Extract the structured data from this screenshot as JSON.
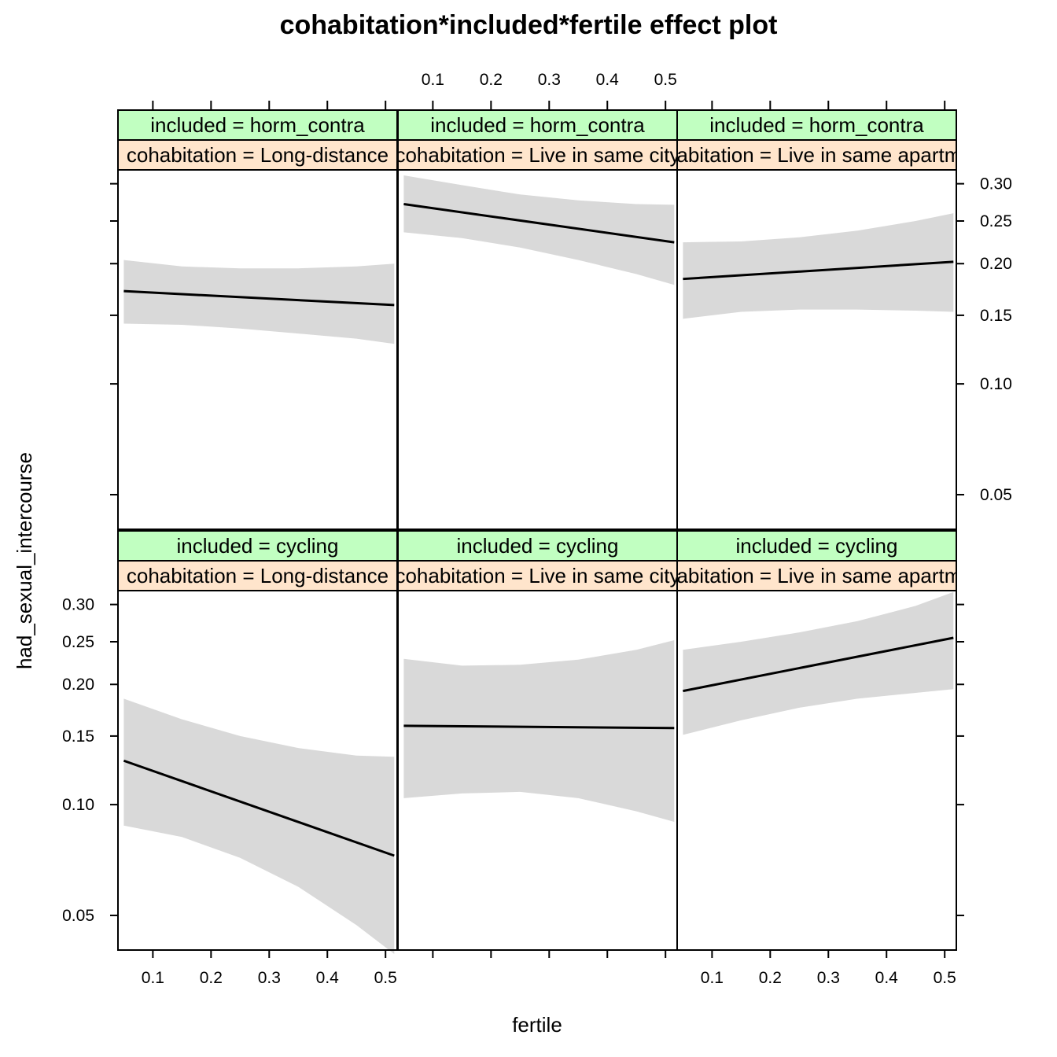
{
  "chart_data": {
    "type": "line",
    "title": "cohabitation*included*fertile effect plot",
    "xlabel": "fertile",
    "ylabel": "had_sexual_intercourse",
    "xlim": [
      0.04,
      0.52
    ],
    "ylim": [
      0.04,
      0.32
    ],
    "y_scale": "logit",
    "x_ticks": [
      0.1,
      0.2,
      0.3,
      0.4,
      0.5
    ],
    "x_tick_labels": [
      "0.1",
      "0.2",
      "0.3",
      "0.4",
      "0.5"
    ],
    "y_ticks": [
      0.05,
      0.1,
      0.15,
      0.2,
      0.25,
      0.3
    ],
    "y_tick_labels": [
      "0.05",
      "0.10",
      "0.15",
      "0.20",
      "0.25",
      "0.30"
    ],
    "grid": false,
    "band_color": "#d9d9d9",
    "line_color": "#000000",
    "strip_colors": {
      "included": "#c1ffc1",
      "cohabitation": "#ffe5cc"
    },
    "panels": [
      {
        "id": "horm-long",
        "row": 0,
        "col": 0,
        "included_label": "included = horm_contra",
        "cohabitation_label": "cohabitation = Long-distance",
        "fit": [
          [
            0.05,
            0.172
          ],
          [
            0.515,
            0.159
          ]
        ],
        "band": [
          [
            0.05,
            0.143,
            0.204
          ],
          [
            0.15,
            0.142,
            0.197
          ],
          [
            0.25,
            0.139,
            0.195
          ],
          [
            0.35,
            0.135,
            0.195
          ],
          [
            0.45,
            0.131,
            0.197
          ],
          [
            0.515,
            0.127,
            0.2
          ]
        ]
      },
      {
        "id": "horm-nonres",
        "row": 0,
        "col": 1,
        "included_label": "included = horm_contra",
        "cohabitation_label": "cohabitation = Live in same city",
        "fit": [
          [
            0.05,
            0.272
          ],
          [
            0.515,
            0.224
          ]
        ],
        "band": [
          [
            0.05,
            0.236,
            0.312
          ],
          [
            0.15,
            0.229,
            0.298
          ],
          [
            0.25,
            0.218,
            0.285
          ],
          [
            0.35,
            0.204,
            0.277
          ],
          [
            0.45,
            0.189,
            0.272
          ],
          [
            0.515,
            0.178,
            0.271
          ]
        ]
      },
      {
        "id": "horm-same",
        "row": 0,
        "col": 2,
        "included_label": "included = horm_contra",
        "cohabitation_label": "cohabitation = Live in same apartment",
        "fit": [
          [
            0.05,
            0.184
          ],
          [
            0.515,
            0.202
          ]
        ],
        "band": [
          [
            0.05,
            0.147,
            0.224
          ],
          [
            0.15,
            0.153,
            0.225
          ],
          [
            0.25,
            0.155,
            0.23
          ],
          [
            0.35,
            0.155,
            0.238
          ],
          [
            0.45,
            0.154,
            0.25
          ],
          [
            0.515,
            0.153,
            0.26
          ]
        ]
      },
      {
        "id": "cyc-long",
        "row": 1,
        "col": 0,
        "included_label": "included = cycling",
        "cohabitation_label": "cohabitation = Long-distance",
        "fit": [
          [
            0.05,
            0.13
          ],
          [
            0.515,
            0.073
          ]
        ],
        "band": [
          [
            0.05,
            0.088,
            0.185
          ],
          [
            0.15,
            0.082,
            0.165
          ],
          [
            0.25,
            0.072,
            0.15
          ],
          [
            0.35,
            0.06,
            0.14
          ],
          [
            0.45,
            0.047,
            0.134
          ],
          [
            0.515,
            0.039,
            0.133
          ]
        ]
      },
      {
        "id": "cyc-nonres",
        "row": 1,
        "col": 1,
        "included_label": "included = cycling",
        "cohabitation_label": "cohabitation = Live in same city",
        "fit": [
          [
            0.05,
            0.159
          ],
          [
            0.515,
            0.157
          ]
        ],
        "band": [
          [
            0.05,
            0.104,
            0.229
          ],
          [
            0.15,
            0.107,
            0.221
          ],
          [
            0.25,
            0.108,
            0.222
          ],
          [
            0.35,
            0.104,
            0.228
          ],
          [
            0.45,
            0.096,
            0.24
          ],
          [
            0.515,
            0.09,
            0.252
          ]
        ]
      },
      {
        "id": "cyc-same",
        "row": 1,
        "col": 2,
        "included_label": "included = cycling",
        "cohabitation_label": "cohabitation = Live in same apartment",
        "fit": [
          [
            0.05,
            0.193
          ],
          [
            0.515,
            0.255
          ]
        ],
        "band": [
          [
            0.05,
            0.151,
            0.24
          ],
          [
            0.15,
            0.164,
            0.25
          ],
          [
            0.25,
            0.176,
            0.262
          ],
          [
            0.35,
            0.185,
            0.277
          ],
          [
            0.45,
            0.191,
            0.298
          ],
          [
            0.515,
            0.195,
            0.318
          ]
        ]
      }
    ]
  }
}
